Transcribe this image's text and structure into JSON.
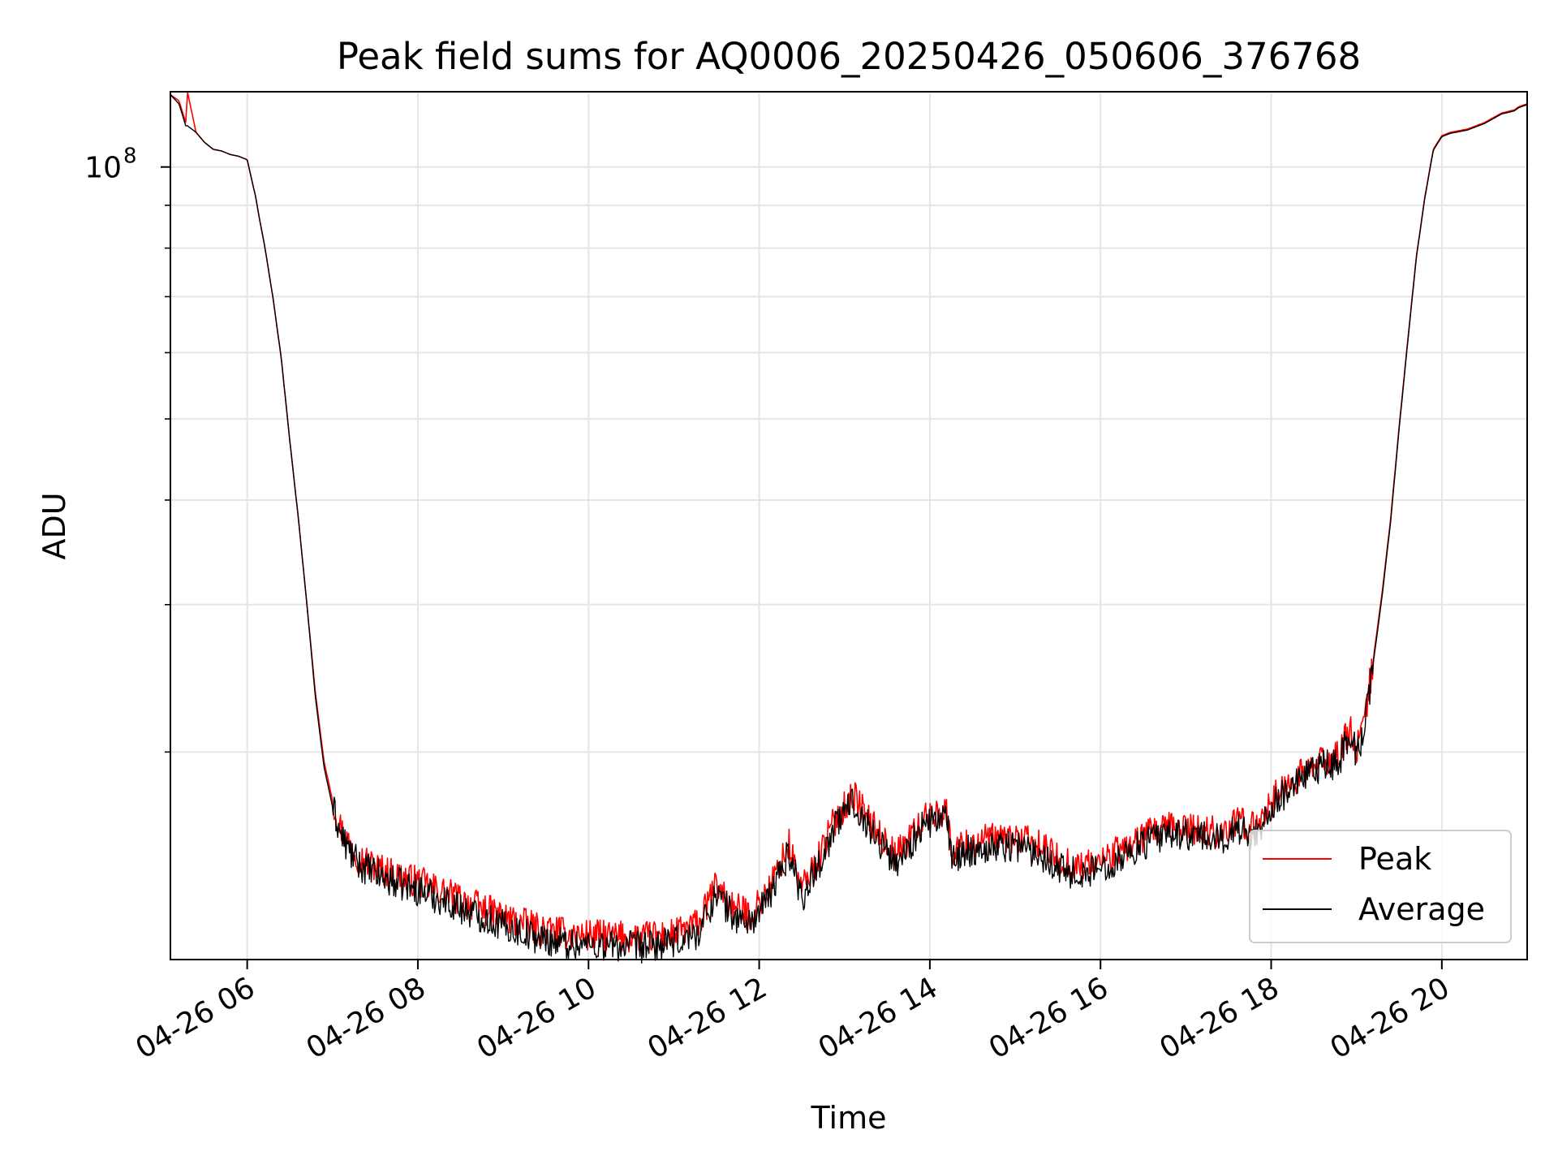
{
  "chart_data": {
    "type": "line",
    "title": "Peak field sums for AQ0006_20250426_050606_376768",
    "xlabel": "Time",
    "ylabel": "ADU",
    "x_unit": "hours (time of day on 2025-04-26)",
    "xlim": [
      5.1,
      21.0
    ],
    "y_scale": "log",
    "ylim": [
      11300000,
      123000000
    ],
    "x_ticks": [
      {
        "value": 6,
        "label": "04-26 06"
      },
      {
        "value": 8,
        "label": "04-26 08"
      },
      {
        "value": 10,
        "label": "04-26 10"
      },
      {
        "value": 12,
        "label": "04-26 12"
      },
      {
        "value": 14,
        "label": "04-26 14"
      },
      {
        "value": 16,
        "label": "04-26 16"
      },
      {
        "value": 18,
        "label": "04-26 18"
      },
      {
        "value": 20,
        "label": "04-26 20"
      }
    ],
    "y_major_ticks": [
      {
        "value": 100000000,
        "label_base": "10",
        "label_exp": "8"
      }
    ],
    "y_minor_ticks": [
      20000000,
      30000000,
      40000000,
      50000000,
      60000000,
      70000000,
      80000000,
      90000000
    ],
    "grid": true,
    "legend_position": "lower right",
    "series": [
      {
        "name": "Peak",
        "color": "#ff0000",
        "x": [
          5.1,
          5.2,
          5.28,
          5.3,
          5.4,
          5.5,
          5.6,
          5.7,
          5.8,
          5.9,
          6.0,
          6.1,
          6.15,
          6.2,
          6.3,
          6.4,
          6.5,
          6.6,
          6.7,
          6.8,
          6.9,
          7.0,
          7.1,
          7.2,
          7.3,
          7.5,
          7.7,
          8.0,
          8.3,
          8.6,
          9.0,
          9.4,
          9.8,
          10.2,
          10.6,
          11.0,
          11.3,
          11.5,
          11.7,
          11.9,
          12.1,
          12.35,
          12.5,
          12.7,
          12.9,
          13.1,
          13.3,
          13.6,
          13.9,
          14.1,
          14.2,
          14.25,
          14.4,
          14.7,
          15.0,
          15.3,
          15.6,
          15.8,
          16.0,
          16.3,
          16.6,
          16.9,
          17.2,
          17.4,
          17.6,
          17.8,
          18.0,
          18.2,
          18.4,
          18.6,
          18.8,
          18.93,
          19.0,
          19.1,
          19.2,
          19.3,
          19.4,
          19.5,
          19.6,
          19.7,
          19.8,
          19.9,
          20.0,
          20.1,
          20.3,
          20.5,
          20.7,
          20.85,
          20.9,
          21.0
        ],
        "values": [
          122000000,
          120000000,
          113000000,
          123000000,
          110000000,
          107000000,
          105000000,
          104500000,
          103500000,
          103000000,
          102000000,
          92000000,
          86000000,
          81000000,
          70000000,
          59000000,
          47000000,
          38000000,
          30000000,
          23500000,
          19500000,
          17500000,
          16200000,
          15500000,
          15000000,
          14600000,
          14300000,
          14000000,
          13600000,
          13200000,
          12700000,
          12300000,
          12100000,
          12050000,
          12000000,
          12100000,
          12500000,
          13900000,
          13000000,
          12800000,
          13600000,
          15500000,
          13700000,
          15000000,
          16700000,
          17800000,
          16500000,
          15000000,
          16500000,
          17000000,
          16900000,
          15200000,
          15500000,
          15700000,
          15800000,
          15400000,
          14700000,
          14600000,
          14800000,
          15400000,
          16000000,
          16300000,
          16100000,
          16000000,
          16500000,
          16200000,
          17500000,
          18300000,
          18900000,
          19500000,
          19800000,
          21500000,
          20000000,
          22000000,
          26000000,
          31000000,
          38000000,
          49000000,
          62000000,
          78000000,
          92000000,
          105000000,
          109000000,
          110000000,
          111000000,
          113000000,
          116000000,
          117000000,
          118000000,
          119000000
        ]
      },
      {
        "name": "Average",
        "color": "#000000",
        "x": [
          5.1,
          5.2,
          5.28,
          5.3,
          5.4,
          5.5,
          5.6,
          5.7,
          5.8,
          5.9,
          6.0,
          6.1,
          6.15,
          6.2,
          6.3,
          6.4,
          6.5,
          6.6,
          6.7,
          6.8,
          6.9,
          7.0,
          7.1,
          7.2,
          7.3,
          7.5,
          7.7,
          8.0,
          8.3,
          8.6,
          9.0,
          9.4,
          9.8,
          10.2,
          10.6,
          11.0,
          11.3,
          11.5,
          11.7,
          11.9,
          12.1,
          12.35,
          12.5,
          12.7,
          12.9,
          13.1,
          13.3,
          13.6,
          13.9,
          14.1,
          14.2,
          14.25,
          14.4,
          14.7,
          15.0,
          15.3,
          15.6,
          15.8,
          16.0,
          16.3,
          16.6,
          16.9,
          17.2,
          17.4,
          17.6,
          17.8,
          18.0,
          18.2,
          18.4,
          18.6,
          18.8,
          18.93,
          19.0,
          19.1,
          19.2,
          19.3,
          19.4,
          19.5,
          19.6,
          19.7,
          19.8,
          19.9,
          20.0,
          20.1,
          20.3,
          20.5,
          20.7,
          20.85,
          20.9,
          21.0
        ],
        "values": [
          122000000,
          119000000,
          112000000,
          112000000,
          110000000,
          107000000,
          105000000,
          104500000,
          103500000,
          103000000,
          102000000,
          92000000,
          86000000,
          81000000,
          70000000,
          59000000,
          47000000,
          38000000,
          30000000,
          23200000,
          19200000,
          17200000,
          15900000,
          15200000,
          14700000,
          14300000,
          14000000,
          13700000,
          13300000,
          12900000,
          12400000,
          12000000,
          11800000,
          11750000,
          11700000,
          11800000,
          12200000,
          13600000,
          12700000,
          12500000,
          13300000,
          15200000,
          13400000,
          14700000,
          16400000,
          17500000,
          16200000,
          14700000,
          16200000,
          16700000,
          16600000,
          14900000,
          15200000,
          15400000,
          15500000,
          15100000,
          14400000,
          14300000,
          14500000,
          15100000,
          15700000,
          16000000,
          15800000,
          15700000,
          16200000,
          15900000,
          17200000,
          18000000,
          18600000,
          19200000,
          19500000,
          21200000,
          19700000,
          21700000,
          25700000,
          30700000,
          37700000,
          48700000,
          61700000,
          77700000,
          91700000,
          104700000,
          108700000,
          109700000,
          110700000,
          112700000,
          115700000,
          116700000,
          117700000,
          118700000
        ]
      }
    ]
  }
}
